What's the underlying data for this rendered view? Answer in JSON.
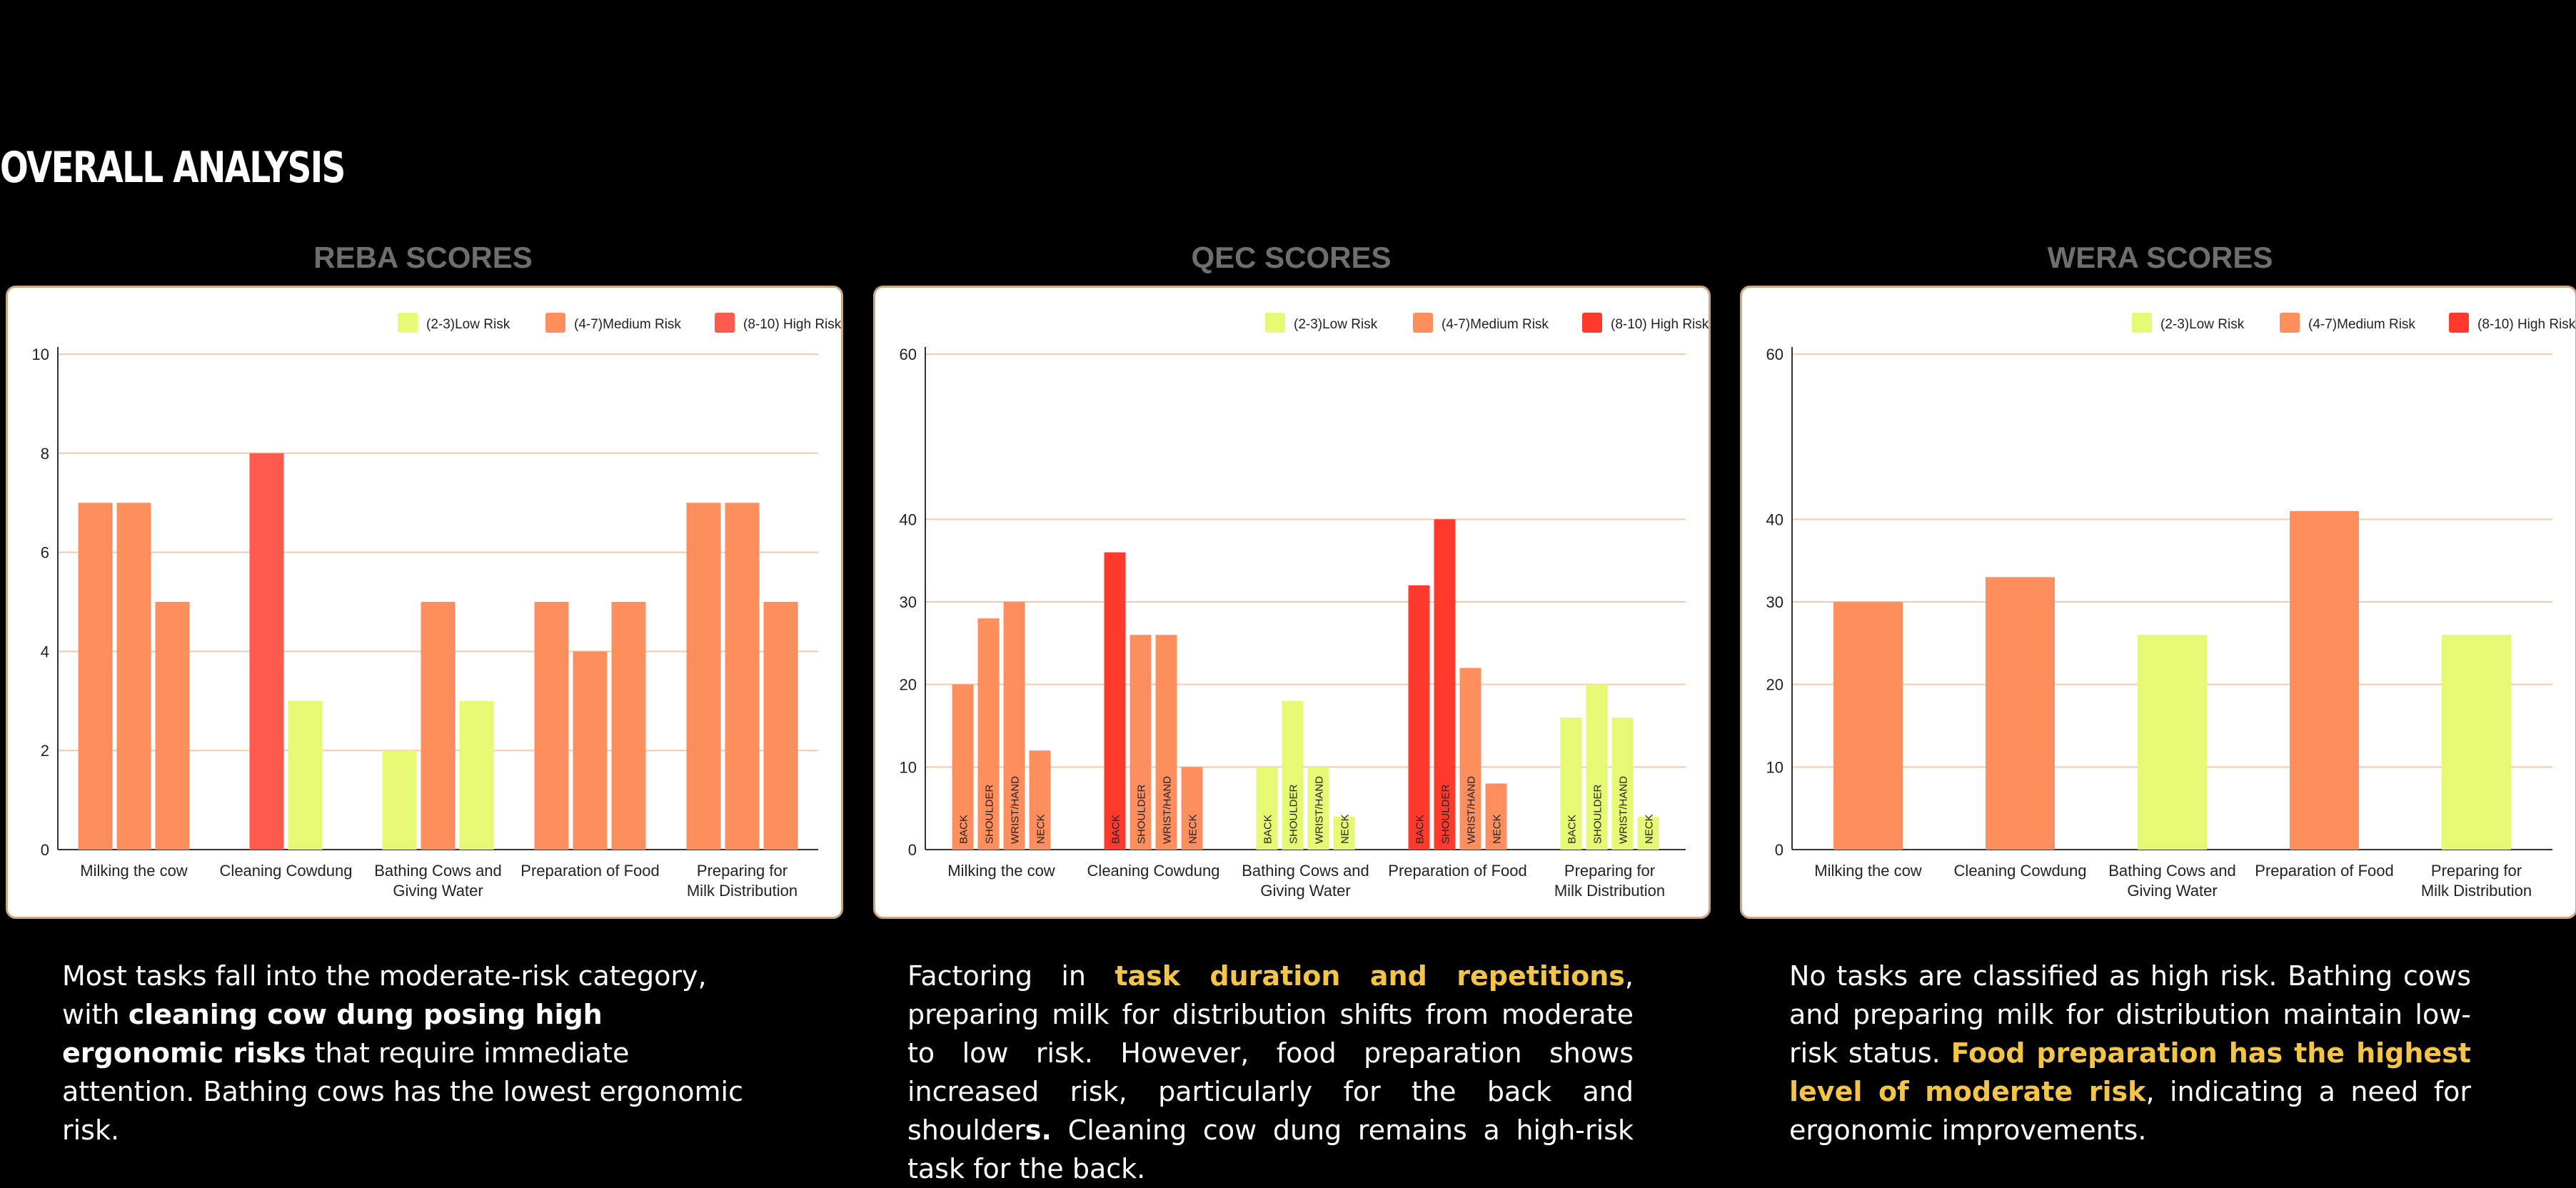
{
  "page": {
    "title": "OVERALL ANALYSIS"
  },
  "panels": [
    {
      "heading": "REBA SCORES"
    },
    {
      "heading": "QEC SCORES"
    },
    {
      "heading": "WERA SCORES"
    }
  ],
  "legend": [
    {
      "label": "(2-3)Low Risk",
      "color": "#e5f975"
    },
    {
      "label": "(4-7)Medium Risk",
      "color": "#fd8f5f"
    },
    {
      "label": "(8-10) High Risk",
      "color": "#ff5a4e"
    }
  ],
  "colors": {
    "low": "#e5f975",
    "medium": "#fd8f5f",
    "high": "#ff5a4e",
    "qec_high": "#ff3a2d",
    "highlight": "#f5c443",
    "gridline": "#f7c9a9"
  },
  "chart_data": [
    {
      "type": "bar",
      "title": "REBA SCORES",
      "categories": [
        [
          "Milking the cow"
        ],
        [
          "Cleaning Cowdung"
        ],
        [
          "Bathing Cows and",
          "Giving Water"
        ],
        [
          "Preparation of Food"
        ],
        [
          "Preparing for",
          "Milk Distribution"
        ]
      ],
      "ylim": [
        0,
        10
      ],
      "yticks": [
        0,
        2,
        4,
        6,
        8,
        10
      ],
      "grid": true,
      "legend_position": "top-right",
      "bar_labels": false,
      "groups": [
        [
          {
            "value": 7,
            "risk": "medium"
          },
          {
            "value": 7,
            "risk": "medium"
          },
          {
            "value": 5,
            "risk": "medium"
          }
        ],
        [
          {
            "value": 8,
            "risk": "high"
          },
          {
            "value": 3,
            "risk": "low"
          }
        ],
        [
          {
            "value": 2,
            "risk": "low"
          },
          {
            "value": 5,
            "risk": "medium"
          },
          {
            "value": 3,
            "risk": "low"
          }
        ],
        [
          {
            "value": 5,
            "risk": "medium"
          },
          {
            "value": 4,
            "risk": "medium"
          },
          {
            "value": 5,
            "risk": "medium"
          }
        ],
        [
          {
            "value": 7,
            "risk": "medium"
          },
          {
            "value": 7,
            "risk": "medium"
          },
          {
            "value": 5,
            "risk": "medium"
          }
        ]
      ]
    },
    {
      "type": "bar",
      "title": "QEC SCORES",
      "categories": [
        [
          "Milking the cow"
        ],
        [
          "Cleaning Cowdung"
        ],
        [
          "Bathing Cows and",
          "Giving Water"
        ],
        [
          "Preparation of Food"
        ],
        [
          "Preparing for",
          "Milk Distribution"
        ]
      ],
      "ylim": [
        0,
        60
      ],
      "yticks": [
        0,
        10,
        20,
        30,
        40,
        60
      ],
      "grid": true,
      "legend_position": "top-right",
      "bar_labels": true,
      "groups": [
        [
          {
            "label": "BACK",
            "value": 20,
            "risk": "medium"
          },
          {
            "label": "SHOULDER",
            "value": 28,
            "risk": "medium"
          },
          {
            "label": "WRIST/HAND",
            "value": 30,
            "risk": "medium"
          },
          {
            "label": "NECK",
            "value": 12,
            "risk": "medium"
          }
        ],
        [
          {
            "label": "BACK",
            "value": 36,
            "risk": "high"
          },
          {
            "label": "SHOULDER",
            "value": 26,
            "risk": "medium"
          },
          {
            "label": "WRIST/HAND",
            "value": 26,
            "risk": "medium"
          },
          {
            "label": "NECK",
            "value": 10,
            "risk": "medium"
          }
        ],
        [
          {
            "label": "BACK",
            "value": 10,
            "risk": "low"
          },
          {
            "label": "SHOULDER",
            "value": 18,
            "risk": "low"
          },
          {
            "label": "WRIST/HAND",
            "value": 10,
            "risk": "low"
          },
          {
            "label": "NECK",
            "value": 4,
            "risk": "low"
          }
        ],
        [
          {
            "label": "BACK",
            "value": 32,
            "risk": "high"
          },
          {
            "label": "SHOULDER",
            "value": 40,
            "risk": "high"
          },
          {
            "label": "WRIST/HAND",
            "value": 22,
            "risk": "medium"
          },
          {
            "label": "NECK",
            "value": 8,
            "risk": "medium"
          }
        ],
        [
          {
            "label": "BACK",
            "value": 16,
            "risk": "low"
          },
          {
            "label": "SHOULDER",
            "value": 20,
            "risk": "low"
          },
          {
            "label": "WRIST/HAND",
            "value": 16,
            "risk": "low"
          },
          {
            "label": "NECK",
            "value": 4,
            "risk": "low"
          }
        ]
      ]
    },
    {
      "type": "bar",
      "title": "WERA SCORES",
      "categories": [
        [
          "Milking the cow"
        ],
        [
          "Cleaning Cowdung"
        ],
        [
          "Bathing Cows and",
          "Giving Water"
        ],
        [
          "Preparation of Food"
        ],
        [
          "Preparing for",
          "Milk Distribution"
        ]
      ],
      "ylim": [
        0,
        60
      ],
      "yticks": [
        0,
        10,
        20,
        30,
        40,
        60
      ],
      "grid": true,
      "legend_position": "top-right",
      "bar_labels": false,
      "groups": [
        [
          {
            "value": 30,
            "risk": "medium"
          }
        ],
        [
          {
            "value": 33,
            "risk": "medium"
          }
        ],
        [
          {
            "value": 26,
            "risk": "low"
          }
        ],
        [
          {
            "value": 41,
            "risk": "medium"
          }
        ],
        [
          {
            "value": 26,
            "risk": "low"
          }
        ]
      ]
    }
  ],
  "captions": {
    "reba": {
      "line1": "Most tasks fall into the moderate-risk category, with",
      "bold": "cleaning cow dung posing high ergonomic risks",
      "rest": "that require immediate attention. Bathing cows has the lowest ergonomic risk."
    },
    "qec": {
      "pre": "Factoring in",
      "highlight": "task duration and repetitions",
      "mid": ", preparing milk for distribution shifts from moderate to low risk. However, food preparation shows increased risk, particularly for the back and shoulder",
      "bold_s": "s.",
      "post": "Cleaning cow dung remains a high-risk task for the back."
    },
    "wera": {
      "pre": "No tasks are classified as high risk. Bathing cows and preparing milk for distribution maintain low-risk status.",
      "highlight": "Food preparation has the highest level of moderate risk",
      "post": ", indicating a need for ergonomic improvements."
    }
  }
}
